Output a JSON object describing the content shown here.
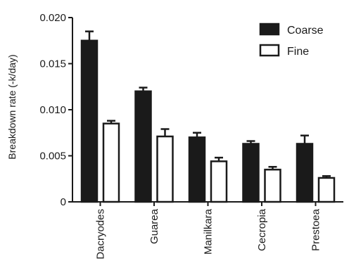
{
  "chart_data": {
    "type": "bar",
    "ylabel": "Breakdown rate (-k/day)",
    "xlabel": "",
    "ylim": [
      0,
      0.02
    ],
    "yticks": [
      0,
      0.005,
      0.01,
      0.015,
      0.02
    ],
    "ytick_labels": [
      "0",
      "0.005",
      "0.010",
      "0.015",
      "0.020"
    ],
    "categories": [
      "Dacryodes",
      "Guarea",
      "Manilkara",
      "Cecropia",
      "Prestoea"
    ],
    "series": [
      {
        "name": "Coarse",
        "color": "#1a1a1a",
        "fill": "#1a1a1a",
        "values": [
          0.0175,
          0.012,
          0.007,
          0.0063,
          0.0063
        ],
        "errors": [
          0.001,
          0.0004,
          0.0005,
          0.0003,
          0.0009
        ]
      },
      {
        "name": "Fine",
        "color": "#1a1a1a",
        "fill": "#ffffff",
        "values": [
          0.0085,
          0.0071,
          0.0044,
          0.0035,
          0.0026
        ],
        "errors": [
          0.0003,
          0.0008,
          0.0004,
          0.0003,
          0.0002
        ]
      }
    ],
    "legend_position": "top-right",
    "grid": false
  }
}
